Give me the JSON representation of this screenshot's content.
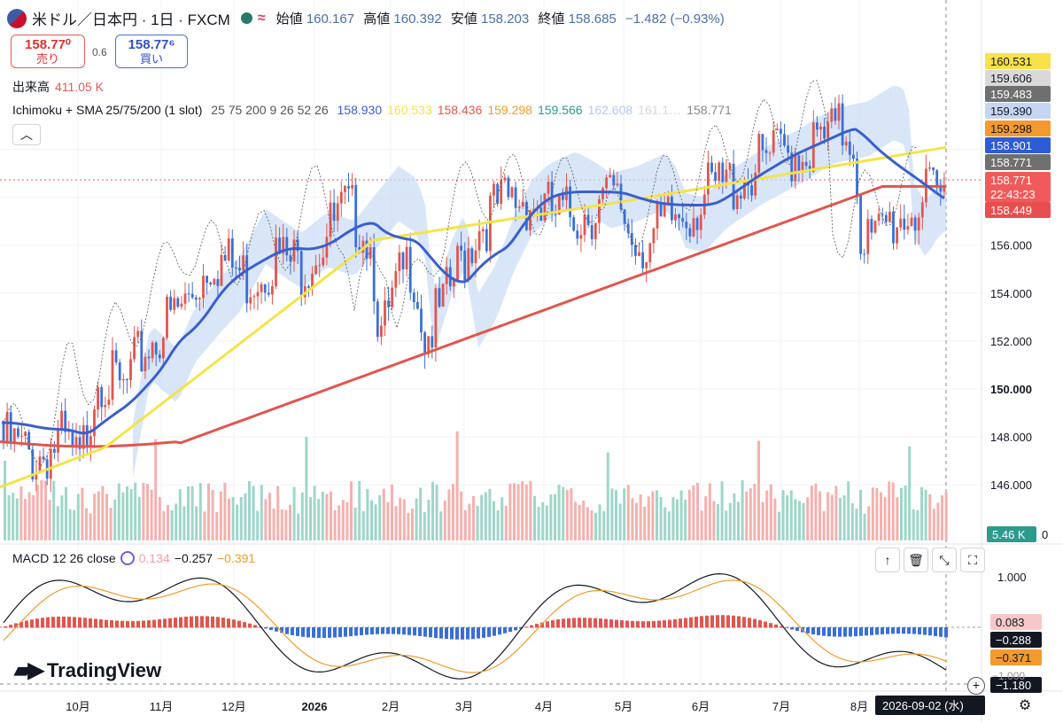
{
  "header": {
    "symbol": "米ドル／日本円 · 1日 · FXCM",
    "open_label": "始値",
    "open": "160.167",
    "high_label": "高値",
    "high": "160.392",
    "low_label": "安値",
    "low": "158.203",
    "close_label": "終値",
    "close": "158.685",
    "change": "−1.482 (−0.93%)"
  },
  "trade": {
    "sell_price": "158.77⁰",
    "sell_label": "売り",
    "spread": "0.6",
    "buy_price": "158.77⁶",
    "buy_label": "買い"
  },
  "volume": {
    "label": "出来高",
    "value": "411.05 K",
    "axis_badge": "5.46 K",
    "axis_zero": "0"
  },
  "ichimoku": {
    "label": "Ichimoku + SMA 25/75/200 (1 slot)",
    "params": "25 75 200 9 26 52 26",
    "values": [
      "158.930",
      "160.533",
      "158.436",
      "159.298",
      "159.566",
      "162.608",
      "161.1…",
      "158.771"
    ],
    "colors": [
      "#3a5fcd",
      "#f2e44a",
      "#e0564e",
      "#f29a2e",
      "#2e9a8e",
      "#b8c9e8",
      "#d8d8d8",
      "#888888"
    ]
  },
  "collapse_icon": "chevron-up-icon",
  "price_axis": {
    "ticks": [
      "146.000",
      "148.000",
      "150.000",
      "152.000",
      "154.000",
      "156.000"
    ],
    "badges": [
      {
        "text": "160.531",
        "bg": "#f7e24a",
        "fg": "#131722"
      },
      {
        "text": "159.606",
        "bg": "#d9d9d9",
        "fg": "#131722"
      },
      {
        "text": "159.483",
        "bg": "#6f6f6f",
        "fg": "#ffffff"
      },
      {
        "text": "159.390",
        "bg": "#c6d6f2",
        "fg": "#131722"
      },
      {
        "text": "159.298",
        "bg": "#f29a2e",
        "fg": "#131722"
      },
      {
        "text": "158.901",
        "bg": "#2e5bd6",
        "fg": "#ffffff"
      },
      {
        "text": "158.771",
        "bg": "#707070",
        "fg": "#ffffff"
      },
      {
        "text": "158.771",
        "bg": "#f05a5a",
        "fg": "#ffffff"
      },
      {
        "text": "22:43:23",
        "bg": "#f05a5a",
        "fg": "#ffffff"
      },
      {
        "text": "158.449",
        "bg": "#e84e4e",
        "fg": "#ffffff"
      }
    ]
  },
  "macd": {
    "label": "MACD 12 26 close",
    "hist": "0.134",
    "macd": "−0.257",
    "signal": "−0.391",
    "axis_ticks": [
      "1.000"
    ],
    "badges": [
      {
        "text": "0.083",
        "bg": "#f6c9c9",
        "fg": "#131722"
      },
      {
        "text": "−0.288",
        "bg": "#131722",
        "fg": "#ffffff"
      },
      {
        "text": "−0.371",
        "bg": "#f29a2e",
        "fg": "#131722"
      },
      {
        "text": "−1.180",
        "bg": "#131722",
        "fg": "#ffffff"
      }
    ],
    "partial_tick": "−1.000"
  },
  "time_axis": {
    "labels": [
      "10月",
      "11月",
      "12月",
      "2026",
      "2月",
      "3月",
      "4月",
      "5月",
      "6月",
      "7月",
      "8月"
    ],
    "crosshair_date": "2026-09-02 (水)"
  },
  "logo": "TradingView",
  "chart_data": {
    "type": "candlestick",
    "title": "米ドル／日本円 · 1日 · FXCM",
    "x_range": [
      "2025-09",
      "2026-09-02"
    ],
    "ylim": [
      145,
      161
    ],
    "series": [
      {
        "name": "SMA 25",
        "color": "#3a5fcd",
        "last": 158.93
      },
      {
        "name": "SMA 75",
        "color": "#f2e44a",
        "last": 160.533
      },
      {
        "name": "SMA 200",
        "color": "#e0564e",
        "last": 158.436
      }
    ],
    "macd": {
      "hist": 0.134,
      "macd": -0.257,
      "signal": -0.391,
      "ylim": [
        -1.2,
        1.2
      ]
    }
  }
}
